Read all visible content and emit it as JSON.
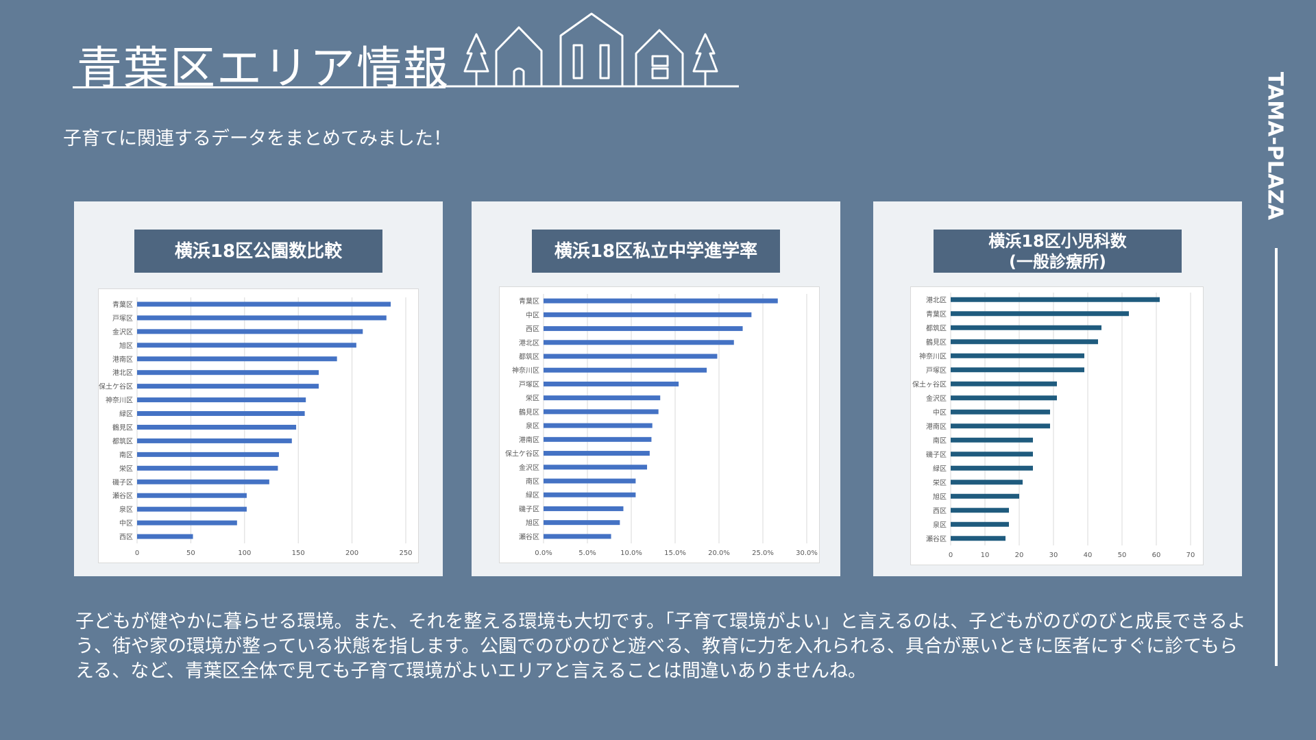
{
  "title": "青葉区エリア情報",
  "subtitle": "子育てに関連するデータをまとめてみました！",
  "side_label": "TAMA-PLAZA",
  "body_text": "子どもが健やかに暮らせる環境。また、それを整える環境も大切です。「子育て環境がよい」と言えるのは、子どもがのびのびと成長できるよう、街や家の環境が整っている状態を指します。公園でのびのびと遊べる、教育に力を入れられる、具合が悪いときに医者にすぐに診てもらえる、など、青葉区全体で見ても子育て環境がよいエリアと言えることは間違いありませんね。",
  "colors": {
    "background": "#617B96",
    "title_box": "#4E6680",
    "bar_blue": "#4472C4",
    "bar_teal": "#1F5B7E"
  },
  "decoration_icons": [
    "tree-icon",
    "house-icon",
    "building-icon",
    "house-icon",
    "tree-icon"
  ],
  "chart_data": [
    {
      "type": "bar",
      "orientation": "horizontal",
      "title": "横浜18区公園数比較",
      "categories": [
        "青葉区",
        "戸塚区",
        "金沢区",
        "旭区",
        "港南区",
        "港北区",
        "保土ケ谷区",
        "神奈川区",
        "緑区",
        "鶴見区",
        "都筑区",
        "南区",
        "栄区",
        "磯子区",
        "瀬谷区",
        "泉区",
        "中区",
        "西区"
      ],
      "values": [
        236,
        232,
        210,
        204,
        186,
        169,
        169,
        157,
        156,
        148,
        144,
        132,
        131,
        123,
        102,
        102,
        93,
        52
      ],
      "xlim": [
        0,
        250
      ],
      "xticks": [
        0,
        50,
        100,
        150,
        200,
        250
      ],
      "tick_labels": [
        "0",
        "50",
        "100",
        "150",
        "200",
        "250"
      ],
      "color": "#4472C4",
      "grid": true
    },
    {
      "type": "bar",
      "orientation": "horizontal",
      "title": "横浜18区私立中学進学率",
      "categories": [
        "青葉区",
        "中区",
        "西区",
        "港北区",
        "都筑区",
        "神奈川区",
        "戸塚区",
        "栄区",
        "鶴見区",
        "泉区",
        "港南区",
        "保土ケ谷区",
        "金沢区",
        "南区",
        "緑区",
        "磯子区",
        "旭区",
        "瀬谷区"
      ],
      "values": [
        26.7,
        23.7,
        22.7,
        21.7,
        19.8,
        18.6,
        15.4,
        13.3,
        13.1,
        12.4,
        12.3,
        12.1,
        11.8,
        10.5,
        10.5,
        9.1,
        8.7,
        7.7
      ],
      "xlim": [
        0,
        30
      ],
      "xticks": [
        0,
        5,
        10,
        15,
        20,
        25,
        30
      ],
      "tick_labels": [
        "0.0%",
        "5.0%",
        "10.0%",
        "15.0%",
        "20.0%",
        "25.0%",
        "30.0%"
      ],
      "color": "#4472C4",
      "grid": true
    },
    {
      "type": "bar",
      "orientation": "horizontal",
      "title": "横浜18区小児科数\n(一般診療所)",
      "categories": [
        "港北区",
        "青葉区",
        "都筑区",
        "鶴見区",
        "神奈川区",
        "戸塚区",
        "保土ヶ谷区",
        "金沢区",
        "中区",
        "港南区",
        "南区",
        "磯子区",
        "緑区",
        "栄区",
        "旭区",
        "西区",
        "泉区",
        "瀬谷区"
      ],
      "values": [
        61,
        52,
        44,
        43,
        39,
        39,
        31,
        31,
        29,
        29,
        24,
        24,
        24,
        21,
        20,
        17,
        17,
        16
      ],
      "xlim": [
        0,
        70
      ],
      "xticks": [
        0,
        10,
        20,
        30,
        40,
        50,
        60,
        70
      ],
      "tick_labels": [
        "0",
        "10",
        "20",
        "30",
        "40",
        "50",
        "60",
        "70"
      ],
      "color": "#1F5B7E",
      "grid": true
    }
  ]
}
